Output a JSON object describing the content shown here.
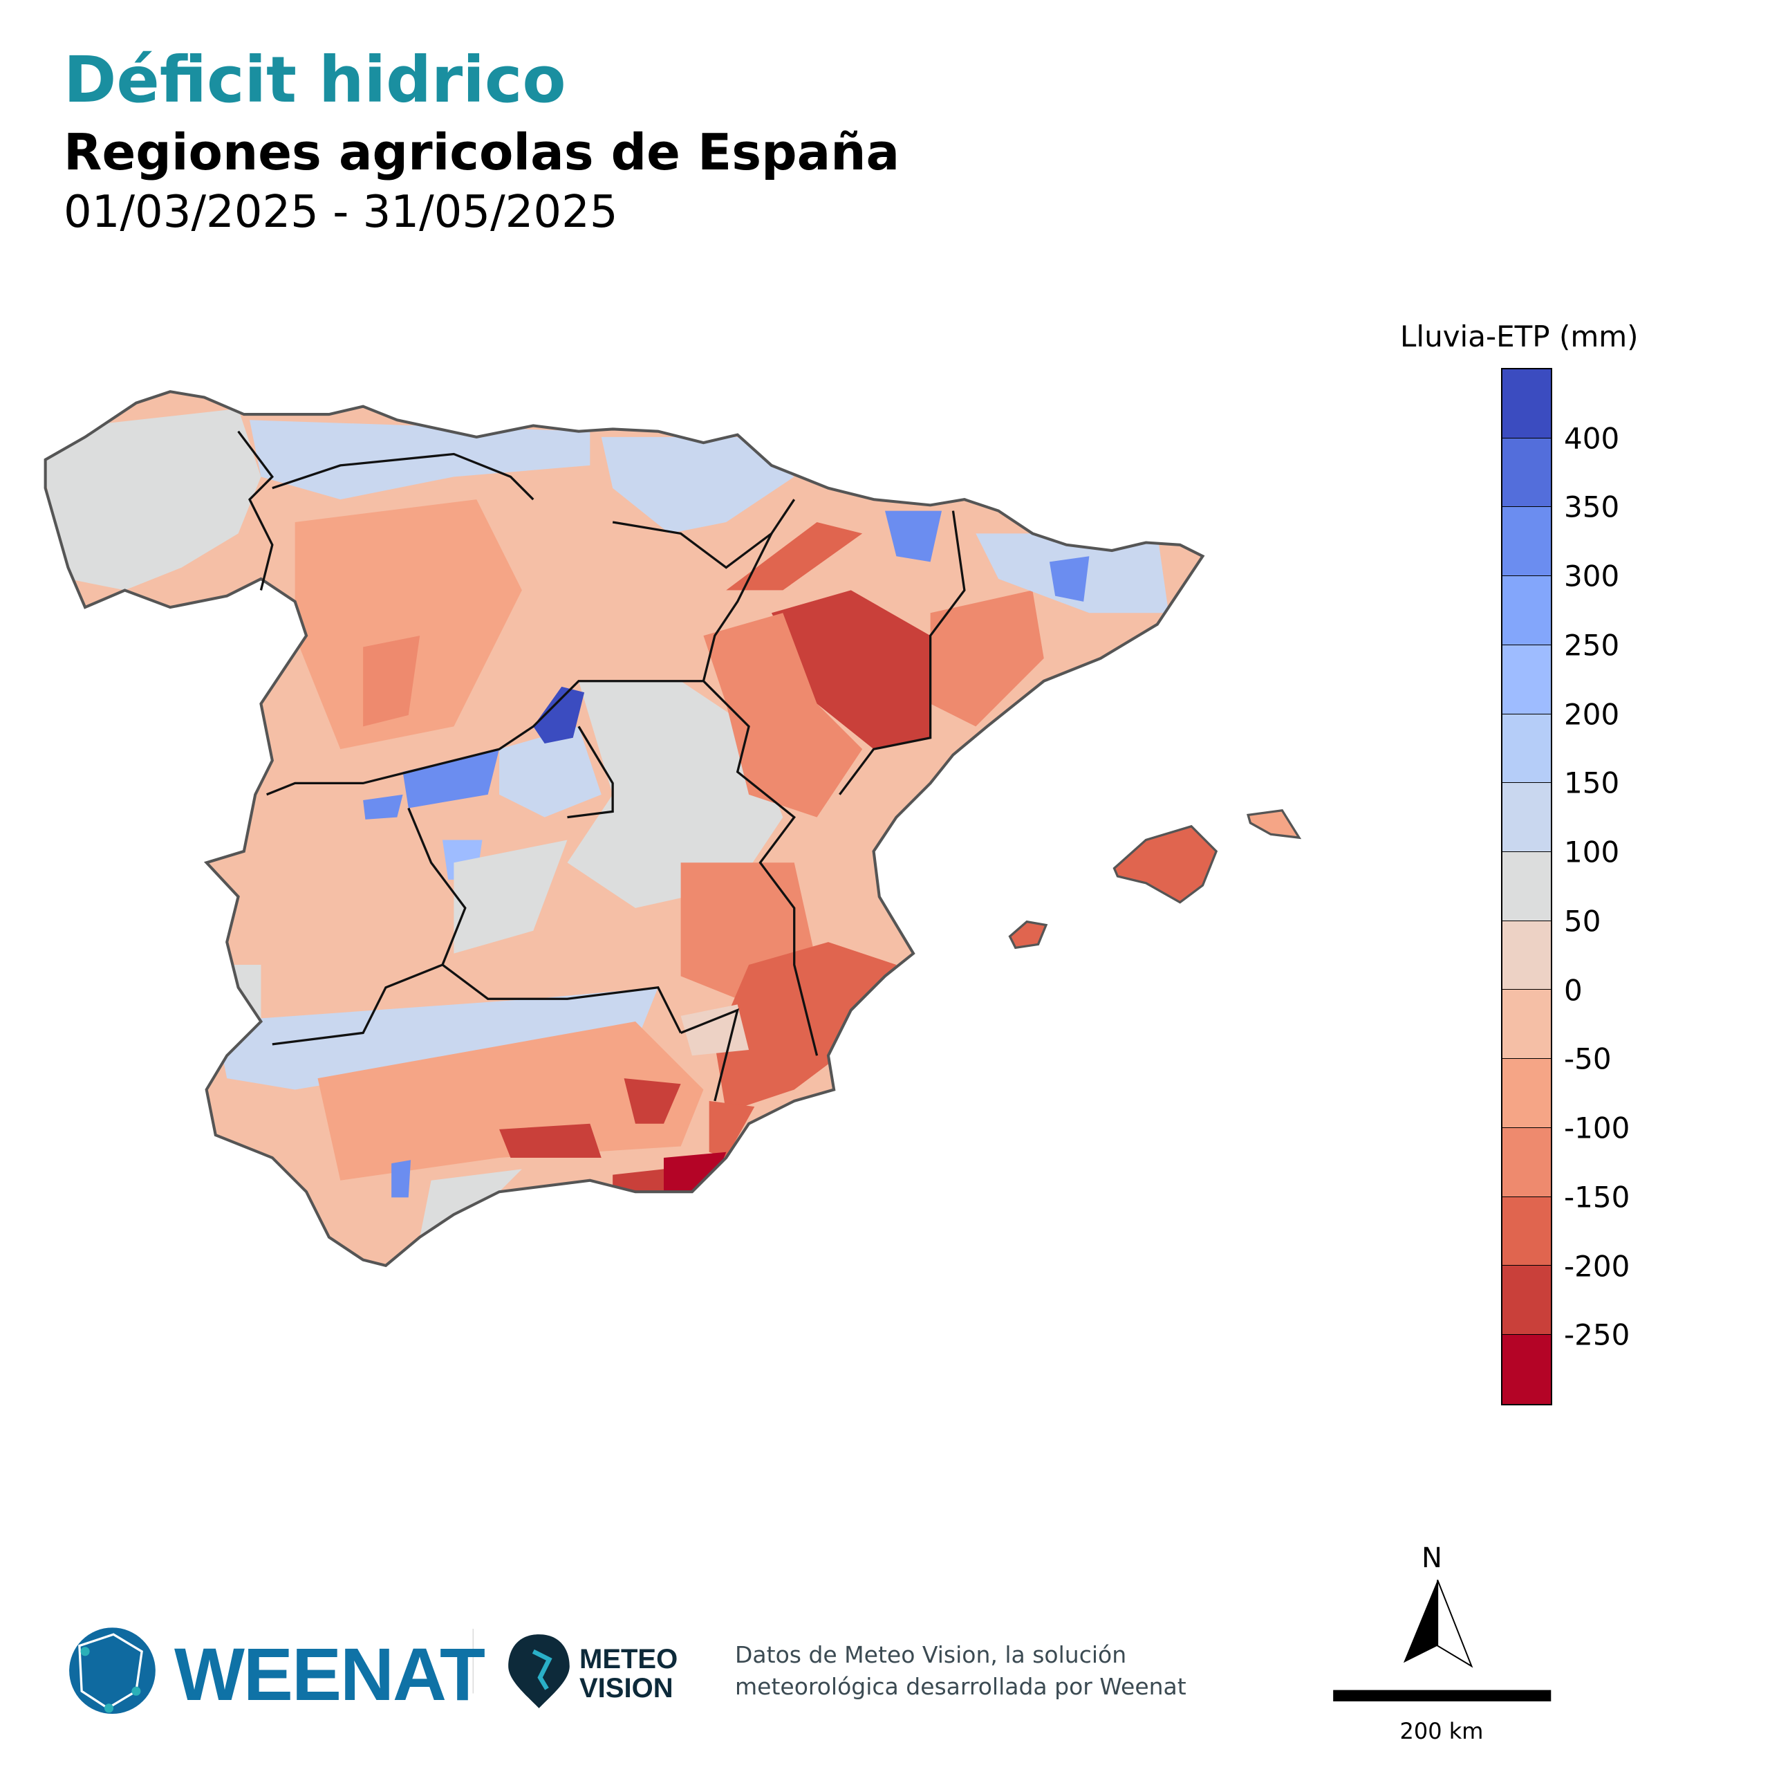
{
  "header": {
    "title": "Déficit hidrico",
    "subtitle": "Regiones agricolas de España",
    "date_range": "01/03/2025 - 31/05/2025",
    "title_color": "#1a8fa0"
  },
  "legend": {
    "title": "Lluvia-ETP (mm)",
    "ticks": [
      "400",
      "350",
      "300",
      "250",
      "200",
      "150",
      "100",
      "50",
      "0",
      "-50",
      "-100",
      "-150",
      "-200",
      "-250"
    ],
    "bins_top_to_bottom": [
      "#3b4cc0",
      "#536edb",
      "#6b8df0",
      "#83a6fb",
      "#9ebcff",
      "#b5cdf8",
      "#c9d7ef",
      "#dcdddd",
      "#edd2c5",
      "#f5bfa6",
      "#f5a586",
      "#ee8a6e",
      "#e0654f",
      "#c9403a",
      "#b40426"
    ]
  },
  "map": {
    "colors": {
      "cat_gt400": "#3b4cc0",
      "cat_350_400": "#536edb",
      "cat_300_350": "#6b8df0",
      "cat_200_250": "#9ebcff",
      "cat_100_150": "#c9d7ef",
      "cat_50_100": "#dcdddd",
      "cat_0_50": "#edd2c5",
      "cat_m50_0": "#f5bfa6",
      "cat_m100_m50": "#f5a586",
      "cat_m150_m100": "#ee8a6e",
      "cat_m200_m150": "#e0654f",
      "cat_m250_m200": "#c9403a",
      "cat_lt_m250": "#b40426"
    }
  },
  "footer": {
    "brand": "WEENAT",
    "partner_line1": "METEO",
    "partner_line2": "VISION",
    "credit_line1": "Datos de Meteo Vision, la solución",
    "credit_line2": "meteorológica desarrollada por Weenat",
    "north_label": "N",
    "scale_label": "200 km"
  }
}
